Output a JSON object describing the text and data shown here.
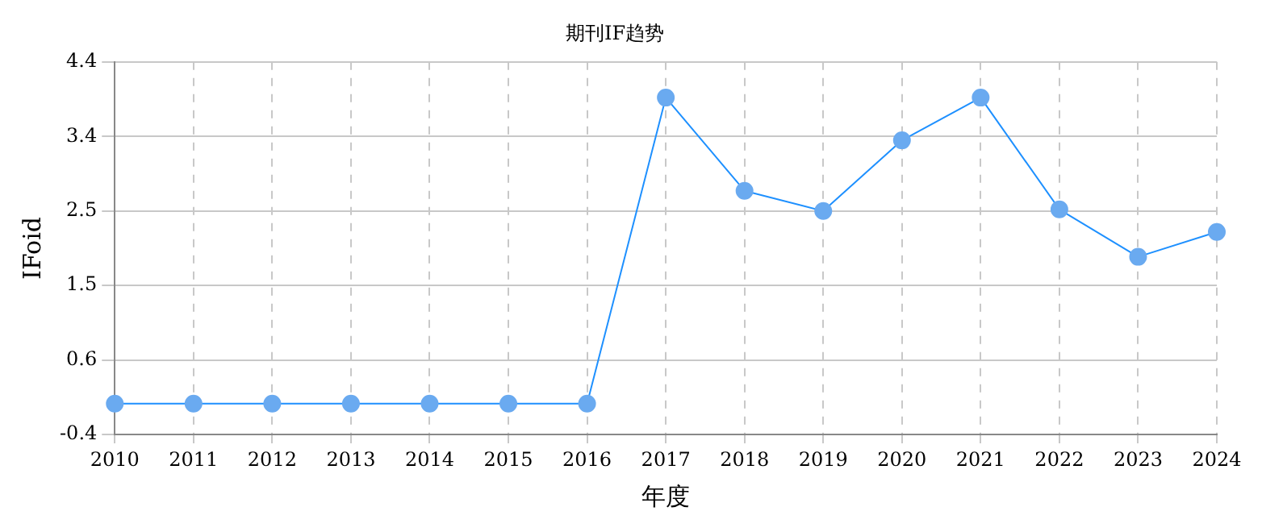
{
  "chart_data": {
    "type": "line",
    "title": "期刊IF趋势",
    "xlabel": "年度",
    "ylabel": "IFoid",
    "categories": [
      "2010",
      "2011",
      "2012",
      "2013",
      "2014",
      "2015",
      "2016",
      "2017",
      "2018",
      "2019",
      "2020",
      "2021",
      "2022",
      "2023",
      "2024"
    ],
    "series": [
      {
        "color": "#1e90ff",
        "values": [
          0,
          0,
          0,
          0,
          0,
          0,
          0,
          3.94,
          2.74,
          2.48,
          3.39,
          3.94,
          2.5,
          1.89,
          2.21
        ]
      }
    ],
    "ylim": [
      -0.4,
      4.4
    ],
    "yticks": [
      {
        "value": -0.4,
        "label": "-0.4"
      },
      {
        "value": 0.56,
        "label": "0.6"
      },
      {
        "value": 1.52,
        "label": "1.5"
      },
      {
        "value": 2.48,
        "label": "2.5"
      },
      {
        "value": 3.44,
        "label": "3.4"
      },
      {
        "value": 4.4,
        "label": "4.4"
      }
    ],
    "grid": true,
    "marker": "circle",
    "line_style": "solid",
    "legend": false
  }
}
